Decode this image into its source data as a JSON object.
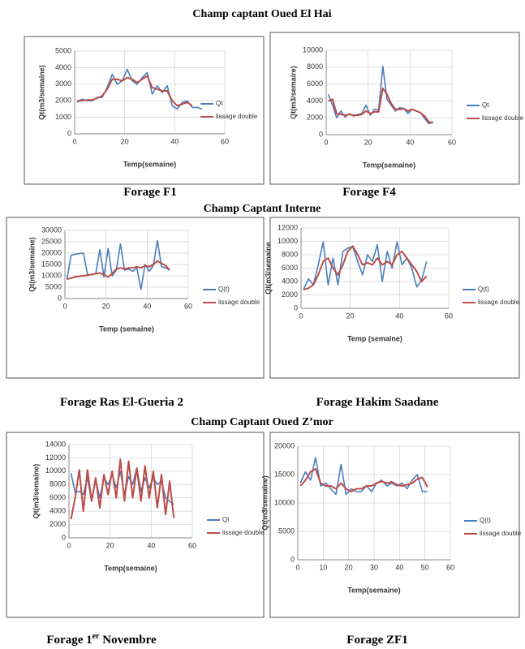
{
  "header": "Champ captant Oued El Hai",
  "section_titles": [
    "Champ Captant Interne",
    "Champ Captant Oued Z’mor"
  ],
  "chart_data": [
    {
      "type": "line",
      "caption": [
        "Forage F1"
      ],
      "y_label": "Qt(m3/semaine)",
      "x_label": "Temp(semaine)",
      "x": [
        1,
        3,
        5,
        7,
        9,
        11,
        13,
        15,
        17,
        19,
        21,
        23,
        25,
        27,
        29,
        31,
        33,
        35,
        37,
        39,
        41,
        43,
        45,
        47,
        49,
        51
      ],
      "xlim": [
        0,
        60
      ],
      "xticks": [
        0,
        20,
        40,
        60
      ],
      "ylim": [
        0,
        5000
      ],
      "yticks": [
        0,
        1000,
        2000,
        3000,
        4000,
        5000
      ],
      "grid": true,
      "series": [
        {
          "name": "Qt",
          "color": "#4a7ebb",
          "values": [
            1900,
            2100,
            2000,
            2000,
            2200,
            2200,
            2800,
            3600,
            3000,
            3200,
            3900,
            3200,
            3000,
            3400,
            3700,
            2400,
            2900,
            2500,
            2900,
            1700,
            1500,
            1900,
            2000,
            1600,
            1600,
            1500
          ]
        },
        {
          "name": "lissage double",
          "color": "#be4b48",
          "values": [
            2000,
            2000,
            2050,
            2050,
            2150,
            2300,
            2700,
            3300,
            3300,
            3200,
            3400,
            3300,
            3100,
            3300,
            3500,
            2800,
            2700,
            2600,
            2600,
            2000,
            1700,
            1800,
            1900,
            1700,
            null,
            null
          ]
        }
      ]
    },
    {
      "type": "line",
      "caption": [
        "Forage F4"
      ],
      "y_label": "Qt(m3/semaire)",
      "x_label": "Temp(semaine)",
      "x": [
        1,
        3,
        5,
        7,
        9,
        11,
        13,
        15,
        17,
        19,
        21,
        23,
        25,
        27,
        29,
        31,
        33,
        35,
        37,
        39,
        41,
        43,
        45,
        47,
        49,
        51
      ],
      "xlim": [
        0,
        60
      ],
      "xticks": [
        0,
        20,
        40,
        60
      ],
      "ylim": [
        0,
        10000
      ],
      "yticks": [
        0,
        2000,
        4000,
        6000,
        8000,
        10000
      ],
      "grid": true,
      "series": [
        {
          "name": "Qt",
          "color": "#4a7ebb",
          "values": [
            4800,
            3500,
            2000,
            2800,
            2100,
            2500,
            2200,
            2400,
            2500,
            3500,
            2300,
            3000,
            2900,
            8100,
            4200,
            3500,
            2800,
            3200,
            3100,
            2500,
            3000,
            2800,
            2600,
            1900,
            1300,
            1500
          ]
        },
        {
          "name": "lissage double",
          "color": "#be4b48",
          "values": [
            4000,
            4200,
            2500,
            2400,
            2300,
            2400,
            2300,
            2300,
            2400,
            2800,
            2500,
            2700,
            2700,
            5500,
            4800,
            3700,
            3000,
            3000,
            3100,
            2800,
            3000,
            2800,
            2600,
            2200,
            1500,
            1400
          ]
        }
      ]
    },
    {
      "type": "line",
      "caption": [
        "Forage Ras El-Gueria 2"
      ],
      "y_label": "Qt(m3/semaine)",
      "x_label": "Temp (semaine)",
      "x": [
        1,
        3,
        5,
        7,
        9,
        11,
        13,
        15,
        17,
        19,
        21,
        23,
        25,
        27,
        29,
        31,
        33,
        35,
        37,
        39,
        41,
        43,
        45,
        47,
        49,
        51
      ],
      "xlim": [
        0,
        60
      ],
      "xticks": [
        0,
        20,
        40,
        60
      ],
      "ylim": [
        0,
        30000
      ],
      "yticks": [
        0,
        5000,
        10000,
        15000,
        20000,
        25000,
        30000
      ],
      "grid": true,
      "series": [
        {
          "name": "Q(t)",
          "color": "#4a7ebb",
          "values": [
            8500,
            19000,
            19500,
            19800,
            20000,
            10500,
            10500,
            11000,
            21500,
            9500,
            22000,
            10000,
            12500,
            24000,
            12500,
            13000,
            12000,
            13500,
            4000,
            15000,
            12000,
            14500,
            25500,
            14000,
            13500,
            12500
          ]
        },
        {
          "name": "lissage double",
          "color": "#be4b48",
          "values": [
            8500,
            9000,
            9500,
            9800,
            10000,
            10300,
            10600,
            11000,
            11200,
            10500,
            9500,
            11000,
            13000,
            13500,
            13000,
            13500,
            13500,
            14000,
            13500,
            14500,
            14000,
            15000,
            16500,
            15500,
            14500,
            12500
          ]
        }
      ]
    },
    {
      "type": "line",
      "caption": [
        "Forage Hakim Saadane"
      ],
      "y_label": "Qt(m3/semaine",
      "x_label": "Temp (semaine)",
      "x": [
        1,
        3,
        5,
        7,
        9,
        11,
        13,
        15,
        17,
        19,
        21,
        23,
        25,
        27,
        29,
        31,
        33,
        35,
        37,
        39,
        41,
        43,
        45,
        47,
        49,
        51
      ],
      "xlim": [
        0,
        60
      ],
      "xticks": [
        0,
        20,
        40,
        60
      ],
      "ylim": [
        0,
        12000
      ],
      "yticks": [
        0,
        2000,
        4000,
        6000,
        8000,
        10000,
        12000
      ],
      "grid": true,
      "series": [
        {
          "name": "Q(t)",
          "color": "#4a7ebb",
          "values": [
            2800,
            4400,
            3500,
            6500,
            9900,
            3500,
            7500,
            3500,
            8500,
            9000,
            9200,
            7000,
            5000,
            8000,
            7000,
            9500,
            4000,
            8500,
            6000,
            9900,
            6500,
            7500,
            6000,
            3200,
            4200,
            7000
          ]
        },
        {
          "name": "lissage double",
          "color": "#be4b48",
          "values": [
            2800,
            3000,
            3500,
            5000,
            7000,
            7500,
            6000,
            5000,
            6500,
            8500,
            9300,
            8000,
            6500,
            6800,
            6500,
            7500,
            6500,
            7000,
            6500,
            8000,
            8500,
            7500,
            6500,
            5500,
            4000,
            4800
          ]
        }
      ]
    },
    {
      "type": "line",
      "caption": [
        "Forage 1",
        "er",
        " Novembre"
      ],
      "y_label": "Qt(m3/semaine)",
      "x_label": "Temp(semaine)",
      "x": [
        1,
        3,
        5,
        7,
        9,
        11,
        13,
        15,
        17,
        19,
        21,
        23,
        25,
        27,
        29,
        31,
        33,
        35,
        37,
        39,
        41,
        43,
        45,
        47,
        49,
        51
      ],
      "xlim": [
        0,
        60
      ],
      "xticks": [
        0,
        20,
        40,
        60
      ],
      "ylim": [
        0,
        14000
      ],
      "yticks": [
        0,
        2000,
        4000,
        6000,
        8000,
        10000,
        12000,
        14000
      ],
      "grid": true,
      "series": [
        {
          "name": "Qt",
          "color": "#4a7ebb",
          "values": [
            9700,
            6800,
            7000,
            6500,
            9000,
            5500,
            8700,
            6000,
            9000,
            8000,
            9500,
            7500,
            10000,
            6500,
            9200,
            8000,
            10500,
            7000,
            9000,
            7500,
            9000,
            8000,
            8500,
            6000,
            5500,
            5000
          ]
        },
        {
          "name": "lissage double",
          "color": "#be4b48",
          "values": [
            2800,
            6000,
            10200,
            4000,
            10200,
            5500,
            9000,
            4500,
            9500,
            6500,
            10000,
            6000,
            11800,
            5500,
            11500,
            6000,
            10500,
            5500,
            10800,
            6000,
            10000,
            4500,
            9500,
            3500,
            8500,
            3000
          ]
        }
      ]
    },
    {
      "type": "line",
      "caption": [
        "Forage ZF1"
      ],
      "y_label": "Qt(m3/semaine)",
      "x_label": "Temp(semaine)",
      "x": [
        1,
        3,
        5,
        7,
        9,
        11,
        13,
        15,
        17,
        19,
        21,
        23,
        25,
        27,
        29,
        31,
        33,
        35,
        37,
        39,
        41,
        43,
        45,
        47,
        49,
        51
      ],
      "xlim": [
        0,
        60
      ],
      "xticks": [
        0,
        10,
        20,
        30,
        40,
        50,
        60
      ],
      "ylim": [
        0,
        20000
      ],
      "yticks": [
        0,
        5000,
        10000,
        15000,
        20000
      ],
      "grid": true,
      "series": [
        {
          "name": "Q(t)",
          "color": "#4a7ebb",
          "values": [
            13500,
            15500,
            14000,
            18000,
            13000,
            13500,
            12500,
            11500,
            16800,
            11500,
            12500,
            12000,
            12000,
            13000,
            12000,
            13500,
            14000,
            13000,
            13500,
            13000,
            13500,
            12500,
            14000,
            15000,
            12000,
            12000
          ]
        },
        {
          "name": "lissage double",
          "color": "#be4b48",
          "values": [
            13000,
            14000,
            15500,
            16000,
            13500,
            13000,
            13000,
            12500,
            13500,
            12500,
            12000,
            12500,
            12500,
            13000,
            13000,
            13500,
            13800,
            13500,
            13700,
            13200,
            13000,
            13200,
            13500,
            14200,
            14500,
            12800
          ]
        }
      ]
    }
  ]
}
